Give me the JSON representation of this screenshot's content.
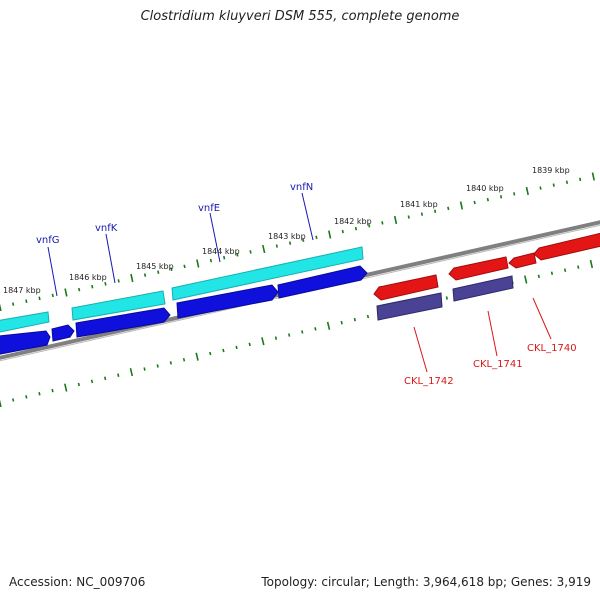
{
  "title": "Clostridium kluyveri DSM 555, complete genome",
  "footer": {
    "accession": "Accession: NC_009706",
    "summary": "Topology: circular; Length: 3,964,618 bp; Genes: 3,919"
  },
  "colors": {
    "backbone": "#808080",
    "tick": "#1a7a1a",
    "forward_cds": "#22e5e5",
    "forward_cds_shadow": "#18b0b0",
    "reverse_cds_blue": "#1010dd",
    "reverse_cds_purple": "#4a4295",
    "red_cds": "#e41515",
    "forward_label": "#1818b0",
    "reverse_label": "#d81818"
  },
  "kbp_labels": [
    "1839 kbp",
    "1840 kbp",
    "1841 kbp",
    "1842 kbp",
    "1843 kbp",
    "1844 kbp",
    "1845 kbp",
    "1846 kbp",
    "1847 kbp"
  ],
  "genes": [
    {
      "label": "vnfG",
      "strand": "forward-top",
      "color": "forward_label"
    },
    {
      "label": "vnfK",
      "strand": "forward-top",
      "color": "forward_label"
    },
    {
      "label": "vnfE",
      "strand": "forward-top",
      "color": "forward_label"
    },
    {
      "label": "vnfN",
      "strand": "forward-top",
      "color": "forward_label"
    },
    {
      "label": "CKL_1742",
      "strand": "reverse-bottom",
      "color": "reverse_label"
    },
    {
      "label": "CKL_1741",
      "strand": "reverse-bottom",
      "color": "reverse_label"
    },
    {
      "label": "CKL_1740",
      "strand": "reverse-bottom",
      "color": "reverse_label"
    }
  ]
}
